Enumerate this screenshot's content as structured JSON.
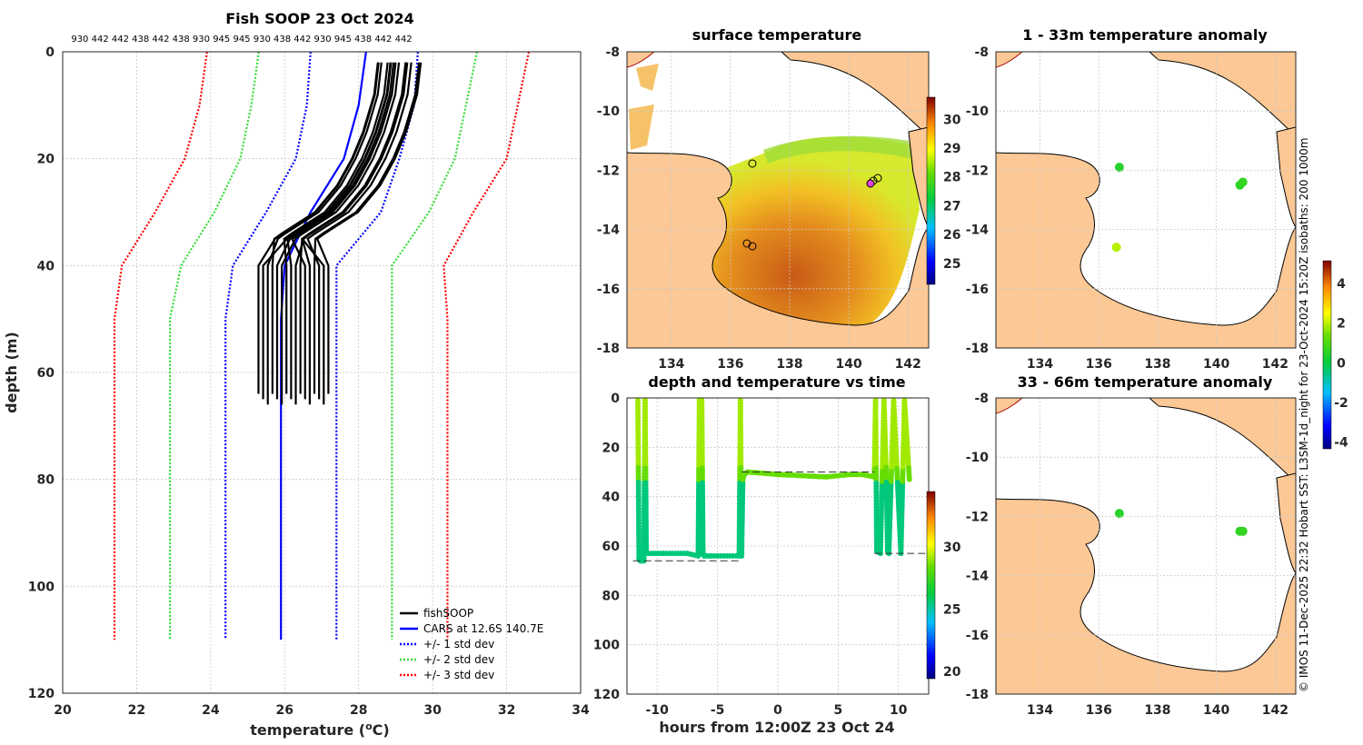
{
  "colors": {
    "fishsoop": "#000000",
    "cars": "#0000ff",
    "std1": "#0000ff",
    "std2": "#33dd33",
    "std3": "#ff0000",
    "land": "#fbc896",
    "sea": "#ffffff"
  },
  "profile": {
    "title": "Fish SOOP 23 Oct 2024",
    "sensor_ids": "930 442 442 438 442 438 930 945 945 930 438 442 930 945 438 442 442",
    "xlabel": "temperature (",
    "xlabel_unit": "o",
    "xlabel_end": "C)",
    "ylabel": "depth (m)",
    "legend": [
      "fishSOOP",
      "CARS at 12.6S 140.7E",
      "+/- 1 std dev",
      "+/- 2 std dev",
      "+/- 3 std dev"
    ]
  },
  "map_sst": {
    "title": "surface temperature",
    "colorbar_ticks": [
      "30",
      "29",
      "28",
      "27",
      "26",
      "25"
    ]
  },
  "timeseries": {
    "title": "depth and temperature vs time",
    "xlabel": "hours from 12:00Z 23 Oct 24",
    "colorbar_ticks": [
      "30",
      "25",
      "20"
    ]
  },
  "map_anom1": {
    "title": "1 - 33m temperature anomaly"
  },
  "map_anom2": {
    "title": "33 - 66m temperature anomaly"
  },
  "anomaly_colorbar": {
    "ticks": [
      "4",
      "2",
      "0",
      "-2",
      "-4"
    ]
  },
  "map_ticks": {
    "lat": [
      "-8",
      "-10",
      "-12",
      "-14",
      "-16",
      "-18"
    ],
    "lon": [
      "134",
      "136",
      "138",
      "140",
      "142"
    ]
  },
  "copyright": "© IMOS 11-Dec-2025 22:32 Hobart SST: L3SM-1d_night for 23-Oct-2024 15:20Z isobaths: 200  1000m",
  "chart_data": [
    {
      "type": "line",
      "title": "Fish SOOP 23 Oct 2024",
      "xlabel": "temperature (oC)",
      "ylabel": "depth (m)",
      "xlim": [
        20,
        34
      ],
      "ylim": [
        120,
        0
      ],
      "xticks": [
        20,
        22,
        24,
        26,
        28,
        30,
        32,
        34
      ],
      "yticks": [
        0,
        20,
        40,
        60,
        80,
        100,
        120
      ],
      "series": [
        {
          "name": "CARS at 12.6S 140.7E",
          "style": "solid",
          "depth": [
            0,
            10,
            20,
            30,
            40,
            50,
            60,
            110
          ],
          "temp": [
            28.2,
            28.0,
            27.6,
            26.7,
            26.0,
            25.9,
            25.9,
            25.9
          ]
        },
        {
          "name": "+1 std dev",
          "style": "dotted",
          "depth": [
            0,
            10,
            20,
            30,
            40,
            50,
            60,
            110
          ],
          "temp": [
            26.7,
            26.6,
            26.3,
            25.5,
            24.6,
            24.4,
            24.4,
            24.4
          ]
        },
        {
          "name": "-1 std dev",
          "style": "dotted",
          "depth": [
            0,
            10,
            20,
            30,
            40,
            50,
            60,
            110
          ],
          "temp": [
            29.6,
            29.5,
            29.1,
            28.6,
            27.4,
            27.4,
            27.4,
            27.4
          ]
        },
        {
          "name": "+2 std dev",
          "style": "dotted",
          "depth": [
            0,
            10,
            20,
            30,
            40,
            50,
            60,
            110
          ],
          "temp": [
            25.3,
            25.1,
            24.8,
            24.1,
            23.2,
            22.9,
            22.9,
            22.9
          ]
        },
        {
          "name": "-2 std dev",
          "style": "dotted",
          "depth": [
            0,
            10,
            20,
            30,
            40,
            50,
            60,
            110
          ],
          "temp": [
            31.2,
            30.9,
            30.6,
            29.9,
            28.9,
            28.9,
            28.9,
            28.9
          ]
        },
        {
          "name": "+3 std dev",
          "style": "dotted",
          "depth": [
            0,
            10,
            20,
            30,
            40,
            50,
            60,
            110
          ],
          "temp": [
            23.9,
            23.7,
            23.3,
            22.5,
            21.6,
            21.4,
            21.4,
            21.4
          ]
        },
        {
          "name": "-3 std dev",
          "style": "dotted",
          "depth": [
            0,
            10,
            20,
            30,
            40,
            50,
            60,
            110
          ],
          "temp": [
            32.6,
            32.3,
            32.0,
            31.1,
            30.3,
            30.4,
            30.4,
            30.4
          ]
        },
        {
          "name": "fishSOOP",
          "style": "solid-bundle",
          "depth": [
            2,
            8,
            15,
            20,
            25,
            30,
            34,
            35,
            40,
            50,
            62,
            64
          ],
          "temp": [
            29.1,
            29.0,
            28.7,
            28.4,
            28.0,
            27.4,
            26.5,
            26.3,
            26.3,
            26.3,
            26.3,
            26.3
          ]
        }
      ]
    },
    {
      "type": "scatter",
      "title": "depth and temperature vs time",
      "xlabel": "hours from 12:00Z 23 Oct 24",
      "xlim": [
        -12.5,
        12.5
      ],
      "ylim": [
        120,
        0
      ],
      "xticks": [
        -10,
        -5,
        0,
        5,
        10
      ],
      "yticks": [
        0,
        20,
        40,
        60,
        80,
        100,
        120
      ],
      "colorbar": {
        "range": [
          19.5,
          34.5
        ],
        "ticks": [
          20,
          25,
          30
        ]
      },
      "depth_track": {
        "time": [
          -11.6,
          -11.5,
          -11.4,
          -11.1,
          -11.0,
          -10.9,
          -9.5,
          -7.5,
          -6.6,
          -6.5,
          -6.3,
          -6.2,
          -6.1,
          -5.5,
          -3.2,
          -3.1,
          -3.0,
          -2.9,
          -2.8,
          -2.5,
          0,
          4,
          6,
          7,
          8.0,
          8.1,
          8.2,
          8.5,
          8.8,
          9.0,
          9.1,
          9.2,
          9.6,
          10.2,
          10.5,
          10.9
        ],
        "depth": [
          1,
          65,
          66,
          66,
          1,
          63,
          63,
          63,
          64,
          1,
          1,
          63,
          64,
          64,
          64,
          1,
          64,
          33,
          31,
          30,
          31,
          32,
          31,
          31,
          32,
          1,
          62,
          63,
          1,
          33,
          62,
          63,
          1,
          63,
          1,
          33
        ]
      }
    },
    {
      "type": "heatmap",
      "title": "surface temperature",
      "xlim": [
        132.5,
        142.7
      ],
      "ylim": [
        -18,
        -8
      ],
      "xticks": [
        134,
        136,
        138,
        140,
        142
      ],
      "yticks": [
        -8,
        -10,
        -12,
        -14,
        -16,
        -18
      ],
      "colorbar": {
        "range": [
          24.3,
          30.8
        ],
        "ticks": [
          25,
          26,
          27,
          28,
          29,
          30
        ]
      }
    },
    {
      "type": "scatter",
      "title": "1 - 33m temperature anomaly",
      "xlim": [
        132.5,
        142.7
      ],
      "ylim": [
        -18,
        -8
      ],
      "points": [
        {
          "lon": 136.7,
          "lat": -11.9,
          "anom": 0.5
        },
        {
          "lon": 136.6,
          "lat": -14.6,
          "anom": 2.0
        },
        {
          "lon": 140.8,
          "lat": -12.5,
          "anom": 0.6
        },
        {
          "lon": 140.9,
          "lat": -12.4,
          "anom": 0.7
        }
      ]
    },
    {
      "type": "scatter",
      "title": "33 - 66m temperature anomaly",
      "xlim": [
        132.5,
        142.7
      ],
      "ylim": [
        -18,
        -8
      ],
      "colorbar": {
        "range": [
          -4.3,
          5.2
        ],
        "ticks": [
          -4,
          -2,
          0,
          2,
          4
        ]
      },
      "points": [
        {
          "lon": 136.7,
          "lat": -11.9,
          "anom": 0.5
        },
        {
          "lon": 140.8,
          "lat": -12.5,
          "anom": 0.6
        },
        {
          "lon": 140.9,
          "lat": -12.5,
          "anom": 0.7
        }
      ]
    }
  ]
}
